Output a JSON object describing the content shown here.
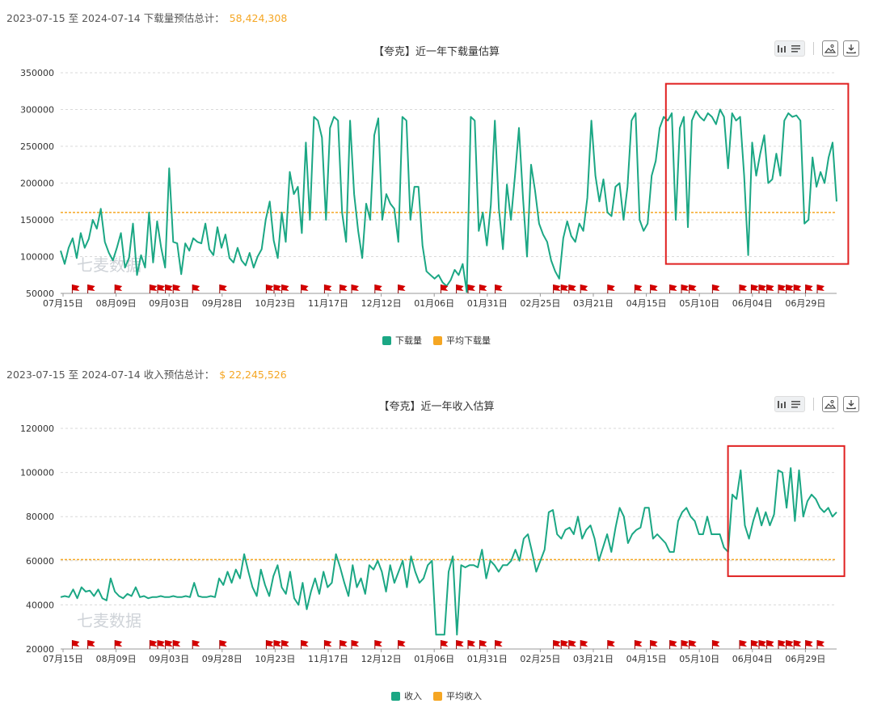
{
  "colors": {
    "series": "#1ba784",
    "average": "#f5a623",
    "highlight": "#e02020",
    "flag": "#d40000",
    "grid": "#d9d9d9"
  },
  "toolbar_icons": [
    "bar-chart-icon",
    "list-icon",
    "image-icon",
    "download-icon"
  ],
  "watermark": "七麦数据",
  "download": {
    "summary_label": "2023-07-15 至 2024-07-14 下载量预估总计：",
    "summary_total": "58,424,308",
    "chart_data": {
      "type": "line",
      "title": "【夸克】近一年下载量估算",
      "ylim": [
        50000,
        350000
      ],
      "yticks": [
        "350000",
        "300000",
        "250000",
        "200000",
        "150000",
        "100000",
        "50000"
      ],
      "xticks": [
        "07月15日",
        "08月09日",
        "09月03日",
        "09月28日",
        "10月23日",
        "11月17日",
        "12月12日",
        "01月06日",
        "01月31日",
        "02月25日",
        "03月21日",
        "04月15日",
        "05月10日",
        "06月04日",
        "06月29日"
      ],
      "average": 160000,
      "series": [
        {
          "name": "下载量",
          "values": [
            108000,
            90000,
            112000,
            125000,
            98000,
            132000,
            112000,
            124000,
            150000,
            138000,
            165000,
            120000,
            105000,
            95000,
            112000,
            132000,
            85000,
            98000,
            145000,
            75000,
            102000,
            85000,
            160000,
            92000,
            148000,
            112000,
            85000,
            220000,
            120000,
            118000,
            76000,
            118000,
            108000,
            125000,
            120000,
            118000,
            145000,
            110000,
            102000,
            140000,
            112000,
            130000,
            98000,
            92000,
            112000,
            95000,
            88000,
            105000,
            85000,
            100000,
            110000,
            150000,
            175000,
            122000,
            98000,
            160000,
            120000,
            215000,
            185000,
            195000,
            132000,
            255000,
            150000,
            290000,
            285000,
            262000,
            150000,
            275000,
            290000,
            285000,
            160000,
            120000,
            285000,
            185000,
            135000,
            98000,
            172000,
            150000,
            265000,
            288000,
            150000,
            185000,
            172000,
            165000,
            120000,
            290000,
            285000,
            150000,
            195000,
            195000,
            115000,
            80000,
            75000,
            70000,
            75000,
            65000,
            60000,
            68000,
            82000,
            75000,
            90000,
            52000,
            290000,
            285000,
            135000,
            160000,
            115000,
            170000,
            285000,
            165000,
            110000,
            198000,
            150000,
            210000,
            275000,
            180000,
            100000,
            225000,
            190000,
            145000,
            130000,
            120000,
            95000,
            80000,
            70000,
            125000,
            148000,
            128000,
            120000,
            145000,
            135000,
            180000,
            285000,
            210000,
            175000,
            205000,
            160000,
            155000,
            195000,
            200000,
            150000,
            195000,
            285000,
            295000,
            150000,
            135000,
            145000,
            210000,
            230000,
            275000,
            290000,
            285000,
            295000,
            150000,
            275000,
            290000,
            140000,
            285000,
            298000,
            290000,
            285000,
            295000,
            290000,
            280000,
            300000,
            290000,
            220000,
            295000,
            285000,
            290000,
            210000,
            102000,
            255000,
            210000,
            240000,
            265000,
            200000,
            205000,
            240000,
            210000,
            285000,
            295000,
            290000,
            292000,
            285000,
            145000,
            150000,
            235000,
            195000,
            215000,
            200000,
            235000,
            255000,
            175000
          ]
        },
        {
          "name": "平均下载量",
          "values": []
        }
      ]
    }
  },
  "revenue": {
    "summary_label": "2023-07-15 至 2024-07-14 收入预估总计：",
    "summary_total": "$ 22,245,526",
    "chart_data": {
      "type": "line",
      "title": "【夸克】近一年收入估算",
      "ylim": [
        20000,
        120000
      ],
      "yticks": [
        "120000",
        "100000",
        "80000",
        "60000",
        "40000",
        "20000"
      ],
      "xticks": [
        "07月15日",
        "08月09日",
        "09月03日",
        "09月28日",
        "10月23日",
        "11月17日",
        "12月12日",
        "01月06日",
        "01月31日",
        "02月25日",
        "03月21日",
        "04月15日",
        "05月10日",
        "06月04日",
        "06月29日"
      ],
      "average": 60500,
      "series": [
        {
          "name": "收入",
          "values": [
            43500,
            44000,
            43500,
            47000,
            43000,
            48000,
            46000,
            46500,
            44000,
            47000,
            43000,
            42000,
            52000,
            46000,
            44000,
            43000,
            45000,
            44000,
            48000,
            43500,
            44000,
            43000,
            43500,
            43500,
            44000,
            43500,
            43500,
            44000,
            43500,
            43500,
            44000,
            43500,
            50000,
            44000,
            43500,
            43500,
            44000,
            43500,
            52000,
            49000,
            55000,
            50000,
            56000,
            52000,
            63000,
            55000,
            48000,
            44000,
            56000,
            49000,
            44000,
            53000,
            58000,
            48000,
            45000,
            55000,
            43000,
            40000,
            50000,
            38000,
            46000,
            52000,
            45000,
            55000,
            48000,
            50000,
            63000,
            57000,
            50000,
            44000,
            58000,
            48000,
            52000,
            45000,
            58000,
            56000,
            60000,
            55000,
            46000,
            58000,
            50000,
            55000,
            60000,
            48000,
            62000,
            55000,
            50000,
            52000,
            58000,
            60000,
            26500,
            26500,
            26500,
            55000,
            62000,
            26500,
            58000,
            57000,
            58000,
            58000,
            57000,
            65000,
            52000,
            60000,
            58000,
            55000,
            58000,
            58000,
            60000,
            65000,
            60000,
            70000,
            72000,
            64000,
            55000,
            60000,
            65000,
            82000,
            83000,
            72000,
            70000,
            74000,
            75000,
            72000,
            80000,
            70000,
            74000,
            76000,
            70000,
            60000,
            66000,
            72000,
            64000,
            75000,
            84000,
            80000,
            68000,
            72000,
            74000,
            75000,
            84000,
            84000,
            70000,
            72000,
            70000,
            68000,
            64000,
            64000,
            78000,
            82000,
            84000,
            80000,
            78000,
            72000,
            72000,
            80000,
            72000,
            72000,
            72000,
            66000,
            64000,
            90000,
            88000,
            101000,
            76000,
            70000,
            78000,
            84000,
            76000,
            82000,
            76000,
            81000,
            101000,
            100000,
            84000,
            102000,
            78000,
            101000,
            80000,
            87000,
            90000,
            88000,
            84000,
            82000,
            84000,
            80000,
            82000
          ]
        },
        {
          "name": "平均收入",
          "values": []
        }
      ]
    }
  }
}
